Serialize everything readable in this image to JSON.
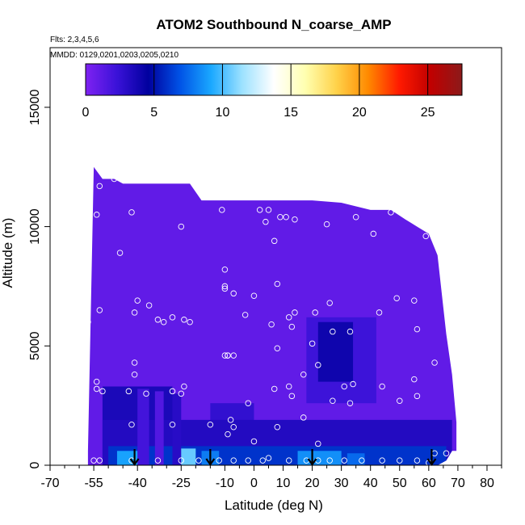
{
  "chart_data": {
    "type": "heatmap",
    "title": "ATOM2 Southbound N_coarse_AMP",
    "flights_label": "Flts: 2,3,4,5,6",
    "dates_label": "MMDD: 0129,0201,0203,0205,0210",
    "xlabel": "Latitude (deg N)",
    "ylabel": "Altitude (m)",
    "xlim": [
      -70,
      85
    ],
    "ylim": [
      0,
      17500
    ],
    "x_ticks": [
      -70,
      -55,
      -40,
      -25,
      -10,
      0,
      10,
      20,
      30,
      40,
      50,
      60,
      70,
      80
    ],
    "x_tick_labels": [
      "-70",
      "-55",
      "-40",
      "-25",
      "-10",
      "0",
      "10",
      "20",
      "30",
      "40",
      "50",
      "60",
      "70",
      "80"
    ],
    "x_minor_ticks": [
      -65,
      -60,
      -50,
      -45,
      -35,
      -30,
      -20,
      -15,
      -5,
      5,
      15,
      25,
      35,
      45,
      55,
      65,
      75,
      85
    ],
    "y_ticks": [
      0,
      5000,
      10000,
      15000
    ],
    "y_tick_labels": [
      "0",
      "5000",
      "10000",
      "15000"
    ],
    "colorbar": {
      "range": [
        0,
        27.5
      ],
      "ticks": [
        0,
        5,
        10,
        15,
        20,
        25
      ],
      "tick_labels": [
        "0",
        "5",
        "10",
        "15",
        "20",
        "25"
      ],
      "colors": [
        "#7f22f2",
        "#3a12d8",
        "#00009e",
        "#0052e6",
        "#1aa8ff",
        "#9ee2ff",
        "#ffffff",
        "#ffffb0",
        "#ffd24a",
        "#ff8a00",
        "#ff1a00",
        "#c00000",
        "#8c1a1a"
      ]
    },
    "grid": false,
    "background_value": 1,
    "envelope": [
      [
        -57,
        0,
        600
      ],
      [
        -55,
        0,
        12500
      ],
      [
        -52,
        0,
        12000
      ],
      [
        -48,
        0,
        12000
      ],
      [
        -45,
        0,
        11800
      ],
      [
        -40,
        0,
        11800
      ],
      [
        -30,
        0,
        11800
      ],
      [
        -22,
        0,
        11800
      ],
      [
        -18,
        0,
        11100
      ],
      [
        -10,
        0,
        11100
      ],
      [
        0,
        0,
        11100
      ],
      [
        10,
        0,
        11100
      ],
      [
        20,
        0,
        11100
      ],
      [
        30,
        0,
        11000
      ],
      [
        40,
        0,
        10700
      ],
      [
        47,
        0,
        10700
      ],
      [
        52,
        0,
        10300
      ],
      [
        56,
        0,
        10000
      ],
      [
        60,
        0,
        9700
      ],
      [
        63,
        0,
        8800
      ],
      [
        66,
        200,
        5500
      ],
      [
        68,
        600,
        3800
      ],
      [
        69.5,
        600,
        1800
      ]
    ],
    "patches": [
      {
        "lat": [
          -52,
          -28
        ],
        "alt": [
          0,
          3300
        ],
        "value": 3.5
      },
      {
        "lat": [
          -15,
          0
        ],
        "alt": [
          1000,
          2600
        ],
        "value": 2.6
      },
      {
        "lat": [
          18,
          42
        ],
        "alt": [
          2600,
          6200
        ],
        "value": 2.2
      },
      {
        "lat": [
          22,
          34
        ],
        "alt": [
          3500,
          6000
        ],
        "value": 4.0
      },
      {
        "lat": [
          -52,
          68
        ],
        "alt": [
          0,
          1900
        ],
        "value": 3.2
      },
      {
        "lat": [
          -50,
          66
        ],
        "alt": [
          0,
          800
        ],
        "value": 6.0
      },
      {
        "lat": [
          -47,
          -37
        ],
        "alt": [
          0,
          600
        ],
        "value": 9.0
      },
      {
        "lat": [
          -27,
          -20
        ],
        "alt": [
          0,
          700
        ],
        "value": 10.5
      },
      {
        "lat": [
          -18,
          -12
        ],
        "alt": [
          0,
          600
        ],
        "value": 8.0
      },
      {
        "lat": [
          15,
          30
        ],
        "alt": [
          0,
          600
        ],
        "value": 8.5
      },
      {
        "lat": [
          32,
          38
        ],
        "alt": [
          0,
          500
        ],
        "value": 7.5
      },
      {
        "lat": [
          -40,
          -36
        ],
        "alt": [
          0,
          3200
        ],
        "value": 2.0
      },
      {
        "lat": [
          -34,
          -31
        ],
        "alt": [
          0,
          3100
        ],
        "value": 1.5
      },
      {
        "lat": [
          -28,
          -25
        ],
        "alt": [
          0,
          3000
        ],
        "value": 3.0
      }
    ],
    "sample_points": [
      [
        -53,
        11700
      ],
      [
        -48,
        12000
      ],
      [
        -45,
        12300
      ],
      [
        -54,
        10500
      ],
      [
        -42,
        10600
      ],
      [
        -25,
        10000
      ],
      [
        -11,
        10700
      ],
      [
        2,
        10700
      ],
      [
        5,
        10700
      ],
      [
        4,
        10200
      ],
      [
        7,
        9400
      ],
      [
        9,
        10400
      ],
      [
        11,
        10400
      ],
      [
        14,
        10300
      ],
      [
        25,
        10100
      ],
      [
        35,
        10400
      ],
      [
        41,
        9700
      ],
      [
        47,
        10600
      ],
      [
        59,
        9600
      ],
      [
        -46,
        8900
      ],
      [
        -10,
        8200
      ],
      [
        -10,
        7500
      ],
      [
        -10,
        7400
      ],
      [
        -7,
        7200
      ],
      [
        -3,
        6300
      ],
      [
        0,
        7100
      ],
      [
        8,
        7600
      ],
      [
        14,
        6400
      ],
      [
        21,
        6400
      ],
      [
        26,
        6800
      ],
      [
        43,
        6400
      ],
      [
        49,
        7000
      ],
      [
        55,
        6900
      ],
      [
        -53,
        6500
      ],
      [
        -40,
        6900
      ],
      [
        -41,
        6400
      ],
      [
        -36,
        6700
      ],
      [
        -33,
        6100
      ],
      [
        -31,
        6000
      ],
      [
        -28,
        6200
      ],
      [
        -24,
        6100
      ],
      [
        -22,
        6000
      ],
      [
        -57,
        6000
      ],
      [
        -68,
        5800
      ],
      [
        -58,
        5900
      ],
      [
        6,
        5900
      ],
      [
        12,
        6200
      ],
      [
        13,
        5800
      ],
      [
        20,
        5100
      ],
      [
        27,
        5600
      ],
      [
        33,
        5600
      ],
      [
        56,
        5700
      ],
      [
        8,
        4900
      ],
      [
        -10,
        4600
      ],
      [
        -9,
        4600
      ],
      [
        -9,
        4600
      ],
      [
        -7,
        4600
      ],
      [
        62,
        4300
      ],
      [
        -41,
        4300
      ],
      [
        22,
        4200
      ],
      [
        -41,
        3800
      ],
      [
        17,
        3800
      ],
      [
        55,
        3600
      ],
      [
        -54,
        3500
      ],
      [
        -54,
        3200
      ],
      [
        -52,
        3100
      ],
      [
        -43,
        3100
      ],
      [
        -37,
        3000
      ],
      [
        -28,
        3100
      ],
      [
        -25,
        3000
      ],
      [
        -24,
        3300
      ],
      [
        7,
        3200
      ],
      [
        12,
        3300
      ],
      [
        31,
        3300
      ],
      [
        34,
        3400
      ],
      [
        44,
        3300
      ],
      [
        56,
        2900
      ],
      [
        13,
        2900
      ],
      [
        27,
        2700
      ],
      [
        33,
        2600
      ],
      [
        50,
        2700
      ],
      [
        -2,
        2600
      ],
      [
        -8,
        1900
      ],
      [
        -7,
        1600
      ],
      [
        8,
        1600
      ],
      [
        17,
        2000
      ],
      [
        -42,
        1700
      ],
      [
        -28,
        1700
      ],
      [
        -15,
        1700
      ],
      [
        -9,
        1300
      ],
      [
        0,
        1000
      ],
      [
        22,
        900
      ],
      [
        62,
        500
      ],
      [
        -55,
        200
      ],
      [
        -53,
        200
      ],
      [
        -42,
        200
      ],
      [
        -33,
        200
      ],
      [
        -25,
        200
      ],
      [
        -19,
        200
      ],
      [
        -12,
        200
      ],
      [
        -7,
        200
      ],
      [
        -2,
        200
      ],
      [
        3,
        200
      ],
      [
        5,
        300
      ],
      [
        12,
        200
      ],
      [
        18,
        200
      ],
      [
        22,
        200
      ],
      [
        26,
        200
      ],
      [
        31,
        200
      ],
      [
        37,
        200
      ],
      [
        44,
        200
      ],
      [
        50,
        200
      ],
      [
        56,
        200
      ],
      [
        60,
        100
      ],
      [
        66,
        500
      ]
    ],
    "arrows": [
      -41,
      -15,
      20,
      61
    ]
  }
}
